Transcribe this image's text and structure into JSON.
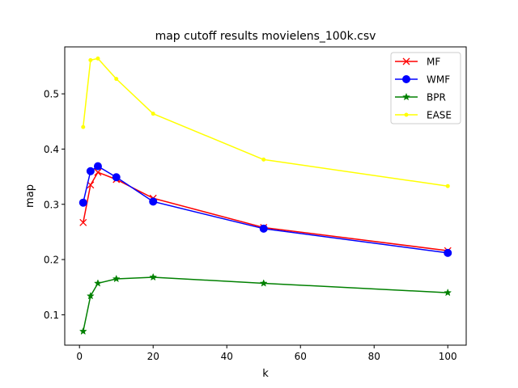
{
  "chart_data": {
    "type": "line",
    "title": "map cutoff results movielens_100k.csv",
    "xlabel": "k",
    "ylabel": "map",
    "xlim": [
      -4,
      105
    ],
    "ylim": [
      0.045,
      0.585
    ],
    "xticks": [
      0,
      20,
      40,
      60,
      80,
      100
    ],
    "yticks": [
      0.1,
      0.2,
      0.3,
      0.4,
      0.5
    ],
    "xtick_labels": [
      "0",
      "20",
      "40",
      "60",
      "80",
      "100"
    ],
    "ytick_labels": [
      "0.1",
      "0.2",
      "0.3",
      "0.4",
      "0.5"
    ],
    "grid": false,
    "legend_position": "top-right",
    "x": [
      1,
      3,
      5,
      10,
      20,
      50,
      100
    ],
    "series": [
      {
        "name": "MF",
        "color": "#ff0000",
        "marker": "x",
        "values": [
          0.267,
          0.335,
          0.358,
          0.345,
          0.311,
          0.258,
          0.216
        ]
      },
      {
        "name": "WMF",
        "color": "#0000ff",
        "marker": "circle",
        "values": [
          0.303,
          0.36,
          0.369,
          0.349,
          0.305,
          0.256,
          0.212
        ]
      },
      {
        "name": "BPR",
        "color": "#008000",
        "marker": "star",
        "values": [
          0.07,
          0.134,
          0.157,
          0.165,
          0.168,
          0.157,
          0.14
        ]
      },
      {
        "name": "EASE",
        "color": "#ffff00",
        "marker": "point",
        "values": [
          0.44,
          0.561,
          0.564,
          0.527,
          0.464,
          0.381,
          0.333
        ]
      }
    ]
  }
}
